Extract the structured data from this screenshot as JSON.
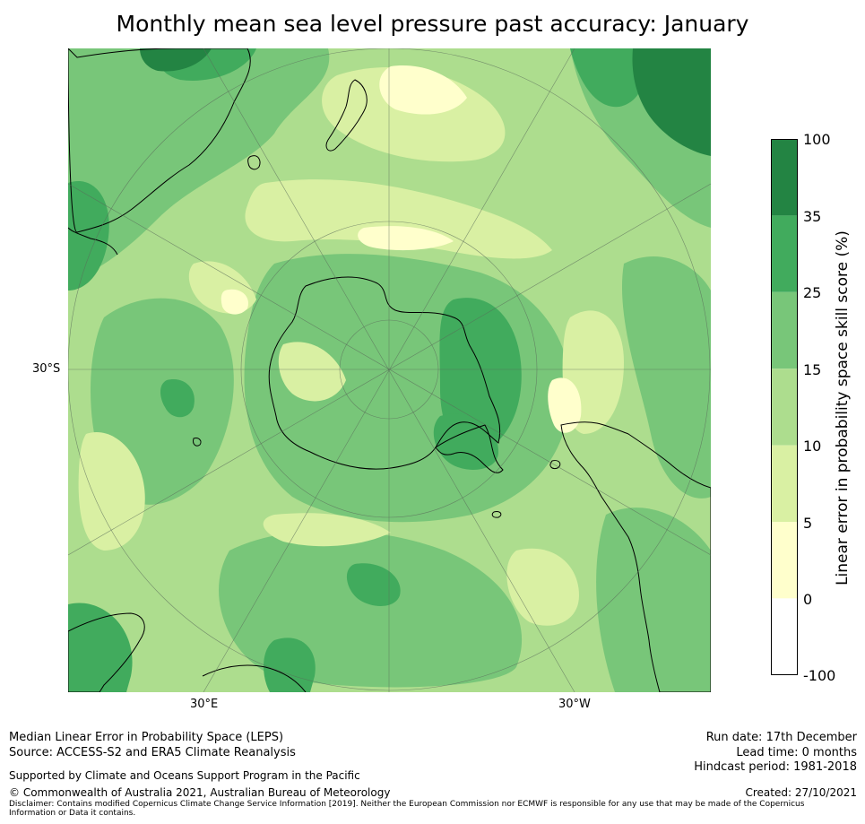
{
  "title": "Monthly mean sea level pressure past accuracy: January",
  "map": {
    "projection": "south-polar-stereographic",
    "lat_label": "30°S",
    "lon_labels": {
      "left": "30°E",
      "right": "30°W"
    },
    "palette": {
      "band_0_5": "#ffffcc",
      "band_5_10": "#d9f0a3",
      "band_10_15": "#addd8e",
      "band_15_25": "#78c679",
      "band_25_35": "#41ab5d",
      "band_35_100": "#238443",
      "coast": "#000000",
      "grid": "#5a6b5a"
    }
  },
  "colorbar": {
    "title": "Linear error in probability space skill score (%)",
    "ticks": [
      "100",
      "35",
      "25",
      "15",
      "10",
      "5",
      "0",
      "-100"
    ],
    "bands": [
      {
        "range": "35–100",
        "color": "#238443"
      },
      {
        "range": "25–35",
        "color": "#41ab5d"
      },
      {
        "range": "15–25",
        "color": "#78c679"
      },
      {
        "range": "10–15",
        "color": "#addd8e"
      },
      {
        "range": "5–10",
        "color": "#d9f0a3"
      },
      {
        "range": "0–5",
        "color": "#ffffcc"
      },
      {
        "range": "-100–0",
        "color": "#ffffff"
      }
    ]
  },
  "footer": {
    "left_line1": "Median Linear Error in Probability Space (LEPS)",
    "left_line2": "Source: ACCESS-S2 and ERA5 Climate Reanalysis",
    "support": "Supported by Climate and Oceans Support Program in the Pacific",
    "copyright": "© Commonwealth of Australia 2021, Australian Bureau of Meteorology",
    "disclaimer": "Disclaimer: Contains modified Copernicus Climate Change Service Information [2019]. Neither the European Commission nor ECMWF is responsible for any use that may be made of the Copernicus Information or Data it contains.",
    "run_date": "Run date: 17th December",
    "lead_time": "Lead time: 0 months",
    "hindcast": "Hindcast period: 1981-2018",
    "created": "Created: 27/10/2021"
  }
}
